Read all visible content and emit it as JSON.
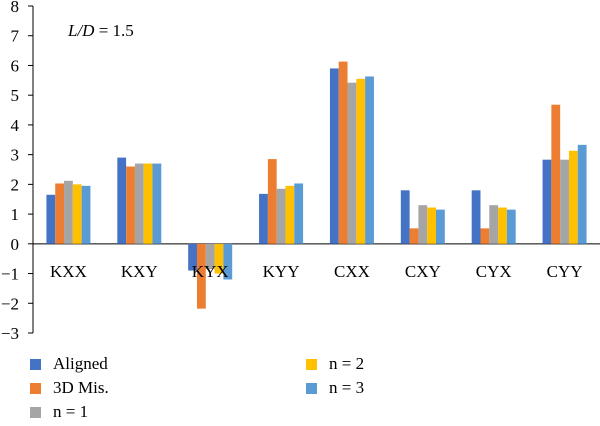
{
  "chart_data": {
    "type": "bar",
    "annotation": {
      "var": "L/D",
      "text": " = 1.5"
    },
    "categories": [
      "KXX",
      "KXY",
      "KYX",
      "KYY",
      "CXX",
      "CXY",
      "CYX",
      "CYY"
    ],
    "series": [
      {
        "name": "Aligned",
        "color": "#4472C4",
        "values": [
          1.65,
          2.9,
          -0.9,
          1.68,
          5.9,
          1.8,
          1.8,
          2.83
        ]
      },
      {
        "name": "3D Mis.",
        "color": "#ED7D31",
        "values": [
          2.03,
          2.6,
          -2.18,
          2.85,
          6.13,
          0.52,
          0.52,
          4.68
        ]
      },
      {
        "name": "n = 1",
        "color": "#A5A5A5",
        "values": [
          2.12,
          2.7,
          -0.85,
          1.85,
          5.42,
          1.3,
          1.3,
          2.83
        ]
      },
      {
        "name": "n = 2",
        "color": "#FFC000",
        "values": [
          2.0,
          2.7,
          -1.0,
          1.95,
          5.55,
          1.22,
          1.22,
          3.13
        ]
      },
      {
        "name": "n = 3",
        "color": "#5B9BD5",
        "values": [
          1.95,
          2.7,
          -1.2,
          2.03,
          5.63,
          1.15,
          1.15,
          3.33
        ]
      }
    ],
    "ylim": [
      -3,
      8
    ],
    "yticks": [
      "−3",
      "−2",
      "−1",
      "0",
      "1",
      "2",
      "3",
      "4",
      "5",
      "6",
      "7",
      "8"
    ],
    "grid": false,
    "legend": "bottom"
  }
}
